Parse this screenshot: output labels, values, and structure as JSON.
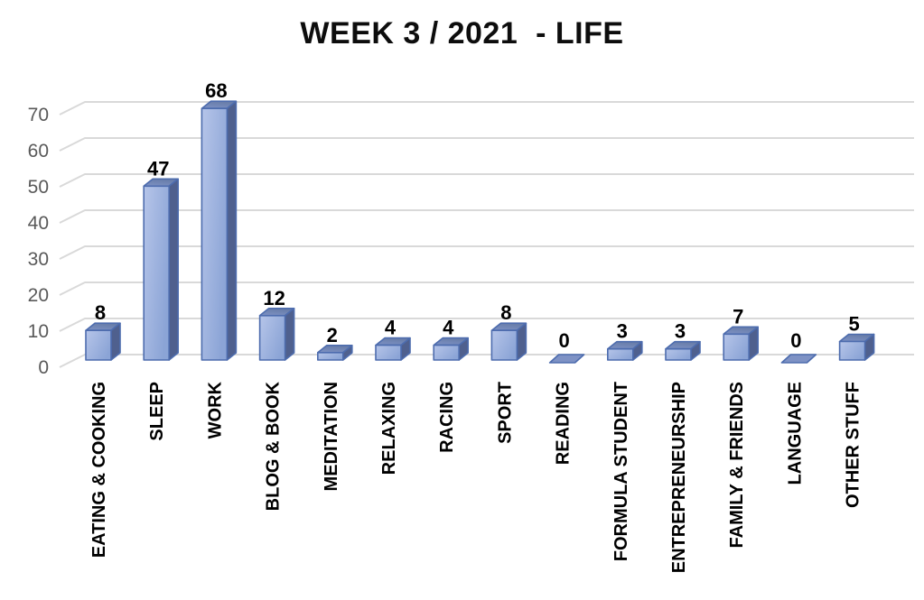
{
  "chart_data": {
    "type": "bar",
    "style": "3d-clustered-column",
    "title": "WEEK 3 / 2021  - LIFE",
    "categories": [
      "EATING & COOKING",
      "SLEEP",
      "WORK",
      "BLOG & BOOK",
      "MEDITATION",
      "RELAXING",
      "RACING",
      "SPORT",
      "READING",
      "FORMULA STUDENT",
      "ENTREPRENEURSHIP",
      "FAMILY & FRIENDS",
      "LANGUAGE",
      "OTHER STUFF"
    ],
    "values": [
      8,
      47,
      68,
      12,
      2,
      4,
      4,
      8,
      0,
      3,
      3,
      7,
      0,
      5
    ],
    "data_labels": true,
    "xlabel": "",
    "ylabel": "",
    "ylim": [
      0,
      70
    ],
    "yticks": [
      0,
      10,
      20,
      30,
      40,
      50,
      60,
      70
    ],
    "grid": true,
    "legend": false,
    "colors": {
      "bar_front_light": "#b6c5e9",
      "bar_front": "#8ba4d6",
      "bar_top": "#7e92c5",
      "bar_top_dark": "#687da9",
      "bar_side": "#4f608e",
      "bar_border": "#4d6cae",
      "gridline": "#d9d9d9",
      "tick_label": "#595959",
      "text": "#000000",
      "background": "#ffffff"
    }
  }
}
